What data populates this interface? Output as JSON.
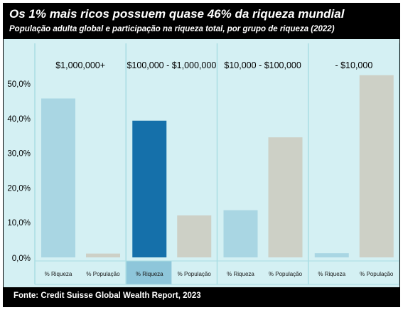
{
  "header": {
    "title": "Os 1% mais ricos possuem quase 46% da riqueza mundial",
    "subtitle": "População adulta global e participação na riqueza total, por grupo de riqueza (2022)"
  },
  "footer": {
    "source": "Fonte: Credit Suisse Global Wealth Report, 2023"
  },
  "chart_data": {
    "type": "bar",
    "groups": [
      "$1,000,000+",
      "$100,000 - $1,000,000",
      "$10,000 - $100,000",
      "- $10,000"
    ],
    "categories": [
      "% Riqueza",
      "% População"
    ],
    "values": [
      [
        45.8,
        1.1
      ],
      [
        39.4,
        12.1
      ],
      [
        13.6,
        34.6
      ],
      [
        1.2,
        52.5
      ]
    ],
    "highlight": {
      "group": 1,
      "category": 0
    },
    "y_ticks": [
      "0,0%",
      "10,0%",
      "20,0%",
      "30,0%",
      "40,0%",
      "50,0%"
    ],
    "ylim": [
      0,
      55
    ],
    "grid": false,
    "colors": {
      "background": "#d4f0f3",
      "wealth": "#a9d6e3",
      "wealth_highlight": "#1570aa",
      "population": "#cdd0c6",
      "highlight_cell": "#8ec6da",
      "divider": "#a9dde3"
    }
  }
}
